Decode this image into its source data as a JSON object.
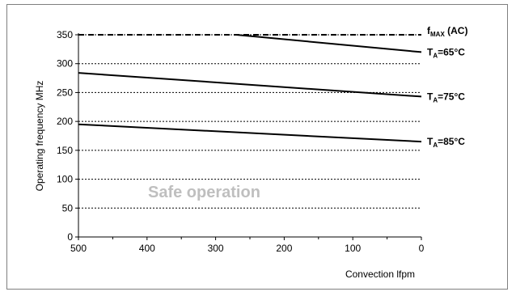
{
  "chart_data": {
    "type": "line",
    "title": "",
    "xlabel": "Convection lfpm",
    "ylabel": "Operating frequency MHz",
    "xlim": [
      500,
      0
    ],
    "ylim": [
      0,
      350
    ],
    "x_reversed": true,
    "x_ticks": [
      500,
      400,
      300,
      200,
      100,
      0
    ],
    "y_ticks": [
      0,
      50,
      100,
      150,
      200,
      250,
      300,
      350
    ],
    "grid": "horizontal-dotted",
    "annotation": "Safe operation",
    "series": [
      {
        "label_main": "f",
        "label_sub": "MAX",
        "label_rest": " (AC)",
        "style": "dashed",
        "points": [
          [
            500,
            350
          ],
          [
            0,
            350
          ]
        ]
      },
      {
        "label_main": "T",
        "label_sub": "A",
        "label_rest": "=65°C",
        "style": "solid",
        "points": [
          [
            270,
            350
          ],
          [
            0,
            320
          ]
        ]
      },
      {
        "label_main": "T",
        "label_sub": "A",
        "label_rest": "=75°C",
        "style": "solid",
        "points": [
          [
            500,
            284
          ],
          [
            0,
            243
          ]
        ]
      },
      {
        "label_main": "T",
        "label_sub": "A",
        "label_rest": "=85°C",
        "style": "solid",
        "points": [
          [
            500,
            195
          ],
          [
            0,
            165
          ]
        ]
      }
    ],
    "colors": {
      "line": "#000000",
      "grid": "#000000",
      "annotation": "#bfbfbf"
    }
  }
}
